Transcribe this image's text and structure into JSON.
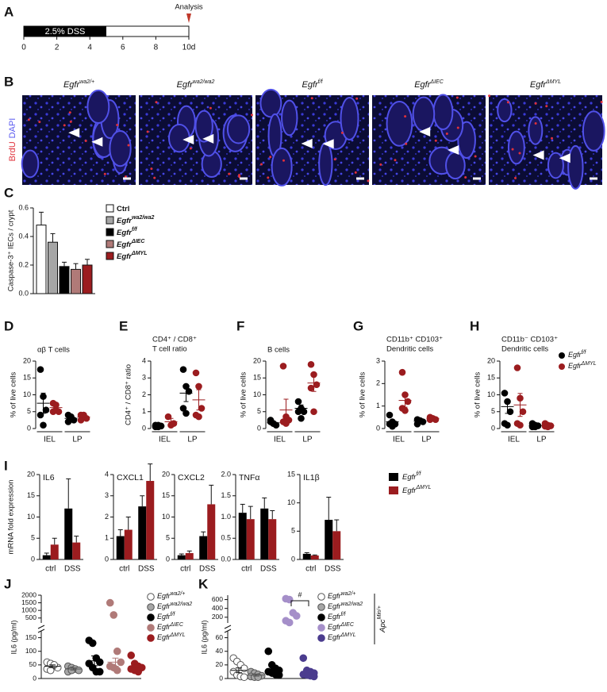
{
  "panel_labels": [
    "A",
    "B",
    "C",
    "D",
    "E",
    "F",
    "G",
    "H",
    "I",
    "J",
    "K"
  ],
  "timeline": {
    "bar_label": "2.5% DSS",
    "annotation": "Analysis",
    "xlim": [
      0,
      10
    ],
    "xticks": [
      0,
      2,
      4,
      6,
      8,
      {
        "value": 10,
        "label": "10d"
      }
    ],
    "dss_days": [
      0,
      5
    ],
    "analysis_day": 10
  },
  "micrographs": {
    "stain_labels": [
      "BrdU",
      "DAPI"
    ],
    "stain_colors": [
      "#e0303a",
      "#5a5af0"
    ],
    "images": [
      {
        "name": "Egfr",
        "sup": "wa2/+"
      },
      {
        "name": "Egfr",
        "sup": "wa2/wa2"
      },
      {
        "name": "Egfr",
        "sup": "f/f"
      },
      {
        "name": "Egfr",
        "sup": "ΔIEC"
      },
      {
        "name": "Egfr",
        "sup": "ΔMYL"
      }
    ]
  },
  "chart_data": [
    {
      "type": "bar",
      "ylabel": "Caspase-3⁺ IECs / crypt",
      "ylim": [
        0,
        0.6
      ],
      "yticks": [
        {
          "value": 0,
          "label": "0.0"
        },
        0.2,
        0.4,
        0.6
      ],
      "series": [
        {
          "name": "Ctrl",
          "color": "#ffffff",
          "values": [
            0.48
          ],
          "errors": [
            0.09
          ]
        },
        {
          "name": "Egfr",
          "sup": "wa2/wa2",
          "color": "#a6a6a6",
          "values": [
            0.36
          ],
          "errors": [
            0.06
          ]
        },
        {
          "name": "Egfr",
          "sup": "f/f",
          "color": "#000000",
          "values": [
            0.19
          ],
          "errors": [
            0.03
          ]
        },
        {
          "name": "Egfr",
          "sup": "ΔIEC",
          "color": "#b07a78",
          "values": [
            0.17
          ],
          "errors": [
            0.04
          ]
        },
        {
          "name": "Egfr",
          "sup": "ΔMYL",
          "color": "#9b1c1f",
          "values": [
            0.2
          ],
          "errors": [
            0.04
          ]
        }
      ]
    },
    {
      "type": "dot-multiples",
      "categories": [
        "IEL",
        "LP"
      ],
      "series": [
        {
          "name": "Egfr",
          "sup": "f/f",
          "color": "#000000"
        },
        {
          "name": "Egfr",
          "sup": "ΔMYL",
          "color": "#9b1c1f"
        }
      ],
      "panels": [
        {
          "title": [
            "αβ T cells"
          ],
          "ylabel": "% of live cells",
          "ylim": [
            0,
            20
          ],
          "yticks": [
            0,
            5,
            10,
            15,
            20
          ],
          "points": [
            [
              [
                17.5,
                9.5,
                5.5,
                4,
                1
              ],
              [
                4,
                3,
                2.5,
                2,
                3.5
              ]
            ],
            [
              [
                7.5,
                5.5,
                5,
                5,
                7
              ],
              [
                4,
                3.5,
                3,
                2.5,
                4
              ]
            ]
          ],
          "means": [
            [
              7.5,
              3
            ],
            [
              6.2,
              3.4
            ]
          ],
          "sems": [
            [
              3,
              0.5
            ],
            [
              0.6,
              0.5
            ]
          ]
        },
        {
          "title": [
            "CD4⁺ / CD8⁺",
            "T cell ratio"
          ],
          "ylabel": "CD4⁺ / CD8⁺ ratio",
          "ylim": [
            0,
            4
          ],
          "yticks": [
            0,
            1,
            2,
            3,
            4
          ],
          "points": [
            [
              [
                0.2,
                0.1,
                0.15,
                0.1,
                0.2
              ],
              [
                3.5,
                2.5,
                2.2,
                1.2,
                0.9
              ]
            ],
            [
              [
                0.7,
                0.2,
                0.3
              ],
              [
                3.3,
                2.5,
                1.2,
                0.8,
                0.7
              ]
            ]
          ],
          "means": [
            [
              0.15,
              2.1
            ],
            [
              0.4,
              1.7
            ]
          ],
          "sems": [
            [
              0.03,
              0.5
            ],
            [
              0.2,
              0.6
            ]
          ]
        },
        {
          "title": [
            "B cells"
          ],
          "ylabel": "% of live cells",
          "ylim": [
            0,
            20
          ],
          "yticks": [
            0,
            5,
            10,
            15,
            20
          ],
          "points": [
            [
              [
                2,
                1.5,
                1,
                2.5,
                1.5
              ],
              [
                8,
                6,
                5,
                5,
                3
              ]
            ],
            [
              [
                18.5,
                3.5,
                2.5,
                2,
                1.5
              ],
              [
                19,
                16,
                13,
                12,
                5
              ]
            ]
          ],
          "means": [
            [
              1.7,
              6
            ],
            [
              5.5,
              13.5
            ]
          ],
          "sems": [
            [
              0.3,
              1
            ],
            [
              3.2,
              2.5
            ]
          ]
        },
        {
          "title": [
            "CD11b⁺ CD103⁺",
            "Dendritic cells"
          ],
          "ylabel": "% of live cells",
          "ylim": [
            0,
            3
          ],
          "yticks": [
            0,
            1,
            2,
            3
          ],
          "points": [
            [
              [
                0.6,
                0.3,
                0.2,
                0.2,
                0.1
              ],
              [
                0.4,
                0.35,
                0.3,
                0.2
              ]
            ],
            [
              [
                2.5,
                1.5,
                1.2,
                0.9,
                0.8
              ],
              [
                0.5,
                0.45,
                0.4,
                0.4
              ]
            ]
          ],
          "means": [
            [
              0.3,
              0.33
            ],
            [
              1.25,
              0.45
            ]
          ],
          "sems": [
            [
              0.08,
              0.05
            ],
            [
              0.3,
              0.03
            ]
          ]
        },
        {
          "title": [
            "CD11b⁻ CD103⁺",
            "Dendritic cells"
          ],
          "ylabel": "% of live cells",
          "ylim": [
            0,
            20
          ],
          "yticks": [
            0,
            5,
            10,
            15,
            20
          ],
          "points": [
            [
              [
                10.5,
                8,
                5,
                1.5,
                1
              ],
              [
                1.5,
                1,
                0.8,
                0.5,
                0.5
              ]
            ],
            [
              [
                18,
                9,
                5,
                1.5,
                1
              ],
              [
                1.5,
                1,
                0.8,
                0.7,
                0.5
              ]
            ]
          ],
          "means": [
            [
              6.5,
              0.9
            ],
            [
              7,
              0.9
            ]
          ],
          "sems": [
            [
              2,
              0.2
            ],
            [
              3.4,
              0.2
            ]
          ]
        }
      ]
    },
    {
      "type": "bar-multiples",
      "ylabel": "mRNA fold expression",
      "categories": [
        "ctrl",
        "DSS"
      ],
      "series": [
        {
          "name": "Egfr",
          "sup": "f/f",
          "color": "#000000"
        },
        {
          "name": "Egfr",
          "sup": "ΔMYL",
          "color": "#9b1c1f"
        }
      ],
      "panels": [
        {
          "title": "IL6",
          "ylim": [
            0,
            20
          ],
          "yticks": [
            0,
            5,
            10,
            15,
            20
          ],
          "values": [
            [
              1,
              12
            ],
            [
              3.5,
              4
            ]
          ],
          "errors": [
            [
              0.5,
              7
            ],
            [
              1.5,
              1.5
            ]
          ]
        },
        {
          "title": "CXCL1",
          "ylim": [
            0,
            4
          ],
          "yticks": [
            0,
            1,
            2,
            3,
            4
          ],
          "values": [
            [
              1.1,
              2.5
            ],
            [
              1.4,
              3.7
            ]
          ],
          "errors": [
            [
              0.3,
              0.5
            ],
            [
              0.6,
              0.8
            ]
          ]
        },
        {
          "title": "CXCL2",
          "ylim": [
            0,
            20
          ],
          "yticks": [
            0,
            5,
            10,
            15,
            20
          ],
          "values": [
            [
              1,
              5.5
            ],
            [
              1.5,
              13
            ]
          ],
          "errors": [
            [
              0.3,
              1
            ],
            [
              0.5,
              4.5
            ]
          ]
        },
        {
          "title": "TNFα",
          "ylim": [
            0,
            2
          ],
          "yticks": [
            {
              "value": 0,
              "label": "0.0"
            },
            0.5,
            {
              "value": 1,
              "label": "1.0"
            },
            1.5,
            {
              "value": 2,
              "label": "2.0"
            }
          ],
          "values": [
            [
              1.1,
              1.2
            ],
            [
              0.95,
              0.95
            ]
          ],
          "errors": [
            [
              0.2,
              0.25
            ],
            [
              0.3,
              0.2
            ]
          ]
        },
        {
          "title": "IL1β",
          "ylim": [
            0,
            15
          ],
          "yticks": [
            0,
            5,
            10,
            15
          ],
          "values": [
            [
              1,
              7
            ],
            [
              0.7,
              5
            ]
          ],
          "errors": [
            [
              0.2,
              4
            ],
            [
              0.1,
              2
            ]
          ]
        }
      ]
    },
    {
      "type": "dot-broken",
      "ylabel": "IL6 (pg/ml)",
      "segments": [
        {
          "ylim": [
            0,
            175
          ],
          "yticks": [
            0,
            50,
            100,
            150
          ]
        },
        {
          "ylim": [
            175,
            2000
          ],
          "yticks": [
            500,
            1000,
            1500,
            2000
          ]
        }
      ],
      "series": [
        {
          "name": "Egfr",
          "sup": "wa2/+",
          "color": "#ffffff",
          "values": [
            60,
            55,
            45,
            40,
            35,
            30,
            50
          ],
          "mean": 45,
          "sem": 5
        },
        {
          "name": "Egfr",
          "sup": "wa2/wa2",
          "color": "#a6a6a6",
          "values": [
            45,
            40,
            35,
            30,
            25,
            30
          ],
          "mean": 35,
          "sem": 4
        },
        {
          "name": "Egfr",
          "sup": "f/f",
          "color": "#000000",
          "values": [
            140,
            130,
            75,
            60,
            55,
            40,
            25,
            25
          ],
          "mean": 65,
          "sem": 18
        },
        {
          "name": "Egfr",
          "sup": "ΔIEC",
          "color": "#b07a78",
          "values": [
            1500,
            700,
            100,
            60,
            45,
            40,
            30
          ],
          "mean": 60,
          "sem": 15
        },
        {
          "name": "Egfr",
          "sup": "ΔMYL",
          "color": "#9b1c1f",
          "values": [
            85,
            55,
            45,
            40,
            35,
            30,
            25
          ],
          "mean": 45,
          "sem": 8
        }
      ]
    },
    {
      "type": "dot-broken",
      "ylabel": "IL6 (pg/ml)",
      "segments": [
        {
          "ylim": [
            0,
            70
          ],
          "yticks": [
            0,
            20,
            40,
            60
          ]
        },
        {
          "ylim": [
            70,
            700
          ],
          "yticks": [
            200,
            400,
            600
          ]
        }
      ],
      "series": [
        {
          "name": "Egfr",
          "sup": "wa2/+",
          "color": "#ffffff",
          "values": [
            30,
            25,
            20,
            15,
            10,
            5,
            3,
            2
          ],
          "mean": 12,
          "sem": 3.5
        },
        {
          "name": "Egfr",
          "sup": "wa2/wa2",
          "color": "#a6a6a6",
          "values": [
            10,
            8,
            6,
            4,
            3,
            2,
            2
          ],
          "mean": 5,
          "sem": 1.5
        },
        {
          "name": "Egfr",
          "sup": "f/f",
          "color": "#000000",
          "values": [
            40,
            20,
            15,
            12,
            10,
            8,
            6,
            5
          ],
          "mean": 14,
          "sem": 4
        },
        {
          "name": "Egfr",
          "sup": "ΔIEC",
          "color": "#a58fc9",
          "values": [
            620,
            600,
            300,
            230,
            120,
            80
          ]
        },
        {
          "name": "Egfr",
          "sup": "ΔMYL",
          "color": "#4b3c8e",
          "values": [
            30,
            12,
            10,
            8,
            6,
            5,
            4,
            3
          ],
          "mean": 10,
          "sem": 3
        }
      ],
      "comparison": {
        "label": "#",
        "groups": [
          3,
          4
        ]
      },
      "side_label": {
        "name": "Apc",
        "sup": "Min/+"
      }
    }
  ]
}
